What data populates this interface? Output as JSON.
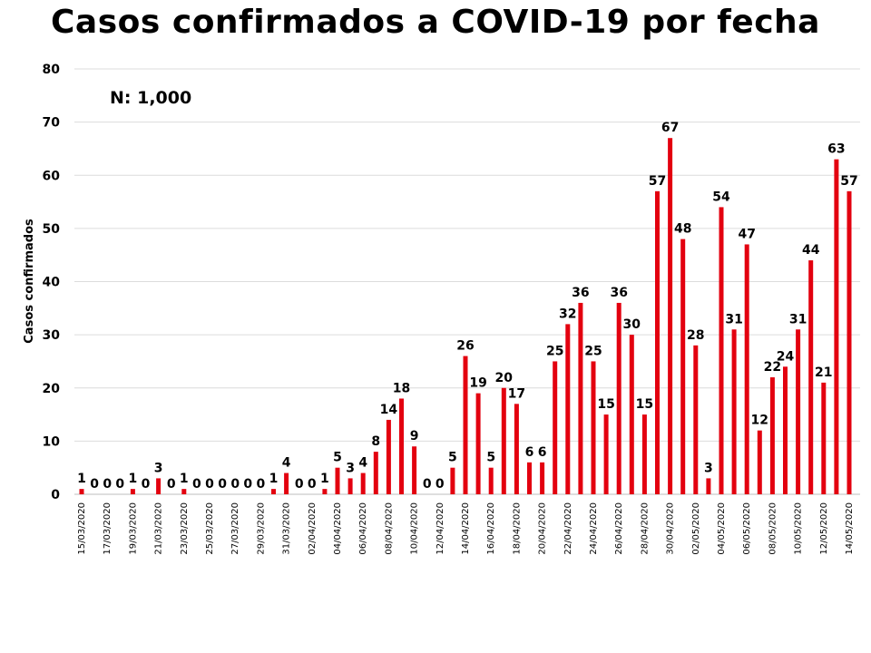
{
  "chart_data": {
    "type": "bar",
    "title": "Casos confirmados a COVID-19 por fecha",
    "ylabel": "Casos confirmados",
    "xlabel": "",
    "annotation": "N: 1,000",
    "ylim": [
      0,
      80
    ],
    "yticks": [
      0,
      10,
      20,
      30,
      40,
      50,
      60,
      70,
      80
    ],
    "grid": true,
    "bar_color": "#e3000f",
    "categories": [
      "15/03/2020",
      "16/03/2020",
      "17/03/2020",
      "18/03/2020",
      "19/03/2020",
      "20/03/2020",
      "21/03/2020",
      "22/03/2020",
      "23/03/2020",
      "24/03/2020",
      "25/03/2020",
      "26/03/2020",
      "27/03/2020",
      "28/03/2020",
      "29/03/2020",
      "30/03/2020",
      "31/03/2020",
      "01/04/2020",
      "02/04/2020",
      "03/04/2020",
      "04/04/2020",
      "05/04/2020",
      "06/04/2020",
      "07/04/2020",
      "08/04/2020",
      "09/04/2020",
      "10/04/2020",
      "11/04/2020",
      "12/04/2020",
      "13/04/2020",
      "14/04/2020",
      "15/04/2020",
      "16/04/2020",
      "17/04/2020",
      "18/04/2020",
      "19/04/2020",
      "20/04/2020",
      "21/04/2020",
      "22/04/2020",
      "23/04/2020",
      "24/04/2020",
      "25/04/2020",
      "26/04/2020",
      "27/04/2020",
      "28/04/2020",
      "29/04/2020",
      "30/04/2020",
      "01/05/2020",
      "02/05/2020",
      "03/05/2020",
      "04/05/2020",
      "05/05/2020",
      "06/05/2020",
      "07/05/2020",
      "08/05/2020",
      "09/05/2020",
      "10/05/2020",
      "11/05/2020",
      "12/05/2020",
      "13/05/2020",
      "14/05/2020"
    ],
    "tick_labels": [
      "15/03/2020",
      "17/03/2020",
      "19/03/2020",
      "21/03/2020",
      "23/03/2020",
      "25/03/2020",
      "27/03/2020",
      "29/03/2020",
      "31/03/2020",
      "02/04/2020",
      "04/04/2020",
      "06/04/2020",
      "08/04/2020",
      "10/04/2020",
      "12/04/2020",
      "14/04/2020",
      "16/04/2020",
      "18/04/2020",
      "20/04/2020",
      "22/04/2020",
      "24/04/2020",
      "26/04/2020",
      "28/04/2020",
      "30/04/2020",
      "02/05/2020",
      "04/05/2020",
      "06/05/2020",
      "08/05/2020",
      "10/05/2020",
      "12/05/2020",
      "14/05/2020"
    ],
    "values": [
      1,
      0,
      0,
      0,
      1,
      0,
      3,
      0,
      1,
      0,
      0,
      0,
      0,
      0,
      0,
      1,
      4,
      0,
      0,
      1,
      5,
      3,
      4,
      8,
      14,
      18,
      9,
      0,
      0,
      5,
      26,
      19,
      5,
      20,
      17,
      6,
      6,
      25,
      32,
      36,
      25,
      15,
      36,
      30,
      15,
      57,
      67,
      48,
      28,
      3,
      54,
      31,
      47,
      12,
      22,
      24,
      31,
      44,
      21,
      63,
      57
    ]
  }
}
